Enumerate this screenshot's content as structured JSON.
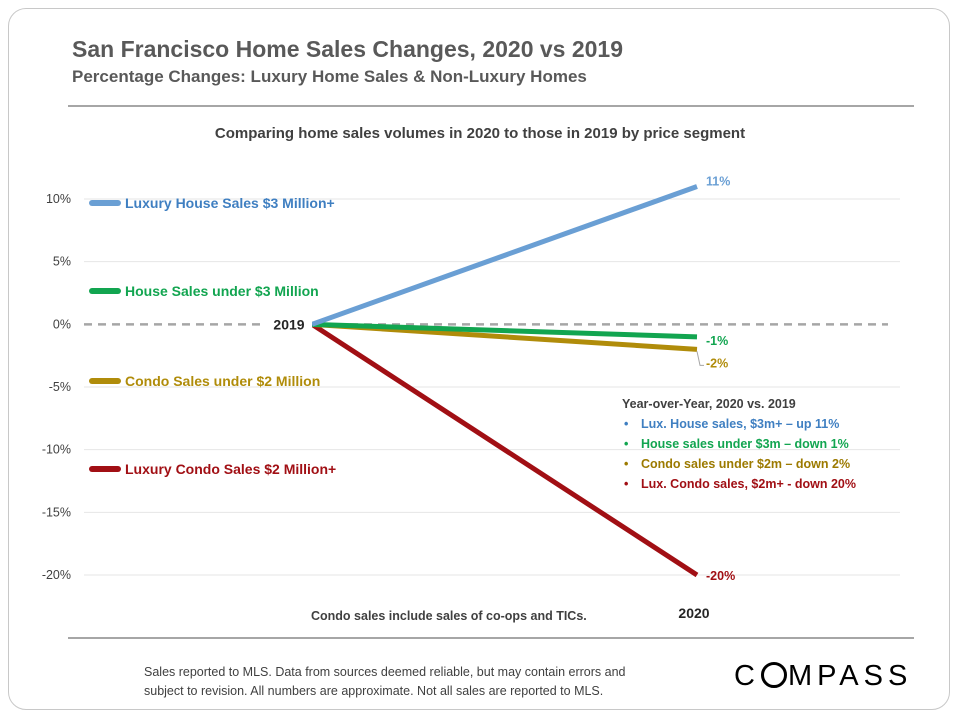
{
  "title": "San Francisco Home Sales Changes, 2020 vs 2019",
  "subtitle": "Percentage Changes: Luxury Home Sales & Non-Luxury Homes",
  "footnote": {
    "line1": "Sales reported to MLS. Data from sources deemed reliable, but may contain errors and",
    "line2": "subject to revision. All numbers are approximate. Not all sales are reported to MLS."
  },
  "logo": {
    "part1": "C",
    "part2": "MPASS"
  },
  "chart_data": {
    "type": "line",
    "title": "Comparing home sales volumes in 2020 to those in 2019 by price segment",
    "xlabel": "",
    "ylabel": "",
    "x": [
      "2019",
      "2020"
    ],
    "ylim": [
      -20,
      10
    ],
    "yticks": [
      "10%",
      "5%",
      "0%",
      "-5%",
      "-10%",
      "-15%",
      "-20%"
    ],
    "grid": true,
    "series": [
      {
        "name": "Luxury House Sales $3 Million+",
        "values": [
          0,
          11
        ],
        "color": "#6a9fd4",
        "end_label": "11%"
      },
      {
        "name": "House Sales under $3 Million",
        "values": [
          0,
          -1
        ],
        "color": "#12a550",
        "end_label": "-1%"
      },
      {
        "name": "Condo Sales under $2 Million",
        "values": [
          0,
          -2
        ],
        "color": "#b08c0a",
        "end_label": "-2%"
      },
      {
        "name": "Luxury Condo Sales $2 Million+",
        "values": [
          0,
          -20
        ],
        "color": "#a10f14",
        "end_label": "-20%"
      }
    ],
    "label_2019": "2019",
    "label_2020": "2020",
    "zero_line_color": "#a6a6a6",
    "legend_box": {
      "title": "Year-over-Year, 2020 vs. 2019",
      "items": [
        {
          "text": "Lux. House sales, $3m+ – up 11%",
          "color": "#3f7fc1"
        },
        {
          "text": "House sales under $3m – down 1%",
          "color": "#12a550"
        },
        {
          "text": "Condo sales under $2m – down 2%",
          "color": "#9c7a00"
        },
        {
          "text": "Lux. Condo sales, $2m+ - down 20%",
          "color": "#a10f14"
        }
      ]
    },
    "note": "Condo sales include sales of co-ops and TICs."
  }
}
